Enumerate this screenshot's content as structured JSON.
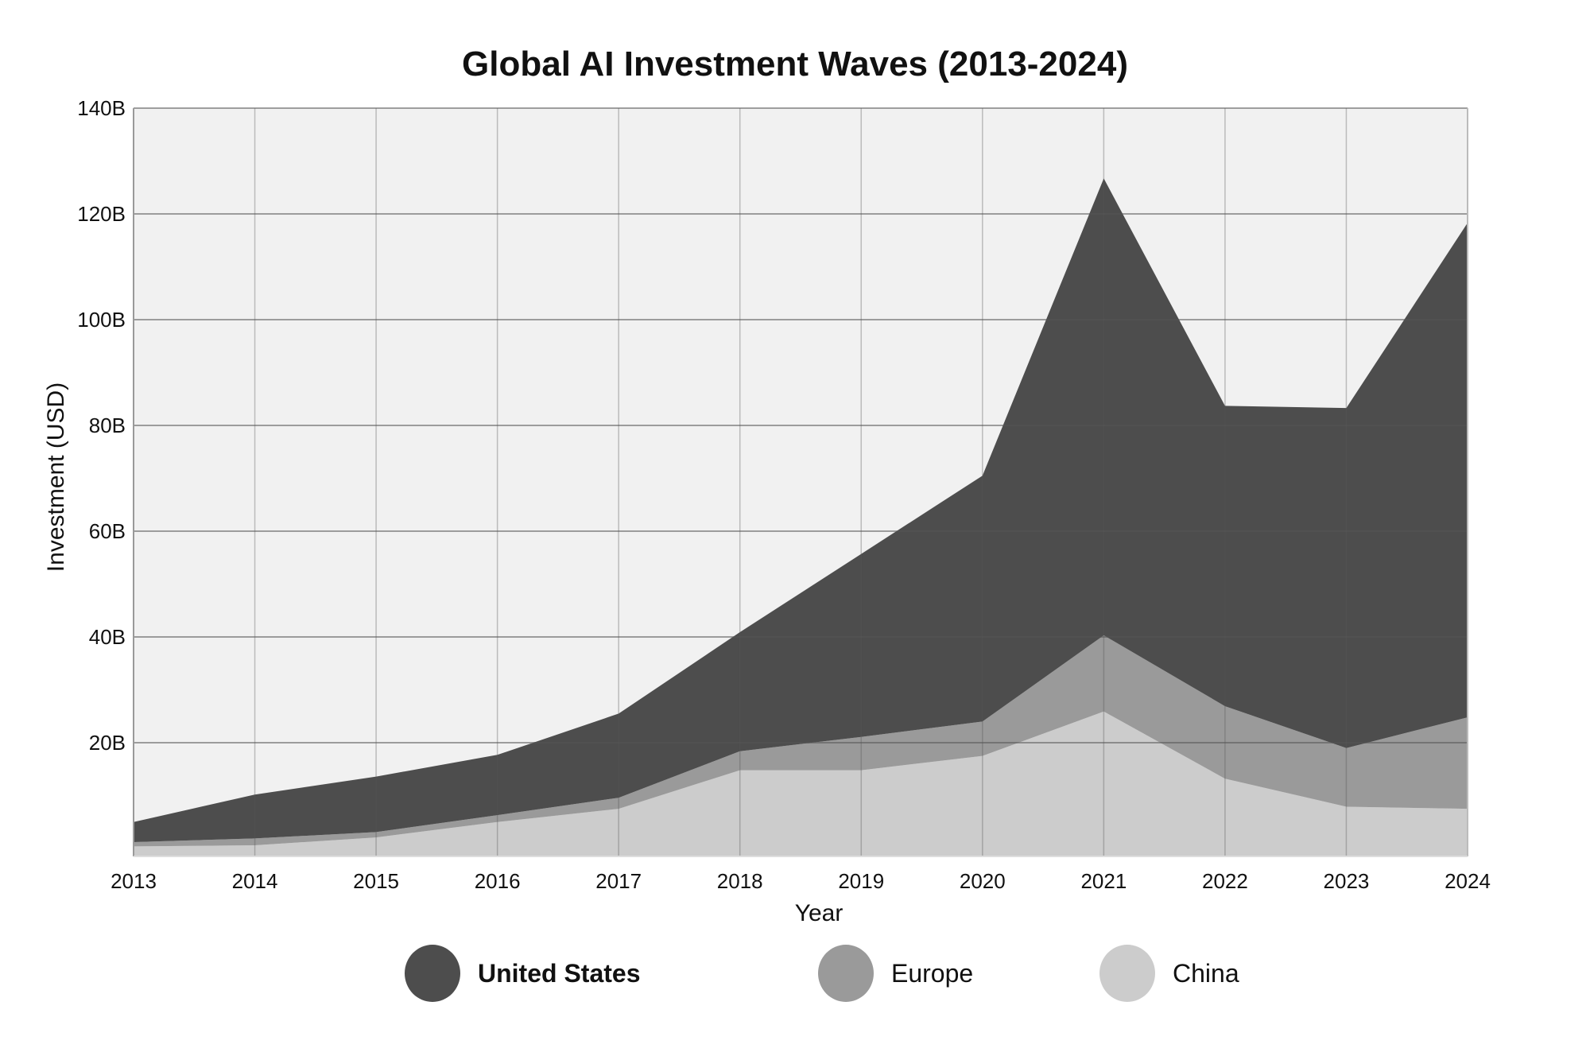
{
  "chart_data": {
    "type": "area",
    "stacked": true,
    "title": "Global AI Investment Waves (2013-2024)",
    "xlabel": "Year",
    "ylabel": "Investment (USD)",
    "categories": [
      "2013",
      "2014",
      "2015",
      "2016",
      "2017",
      "2018",
      "2019",
      "2020",
      "2021",
      "2022",
      "2023",
      "2024"
    ],
    "ylim": [
      -1.5,
      140
    ],
    "yticks": [
      20,
      40,
      60,
      80,
      100,
      120,
      140
    ],
    "ytick_labels": [
      "20B",
      "40B",
      "60B",
      "80B",
      "100B",
      "120B",
      "140B"
    ],
    "grid": true,
    "legend_position": "bottom",
    "series": [
      {
        "name": "China",
        "color": "#cccccc",
        "values": [
          0.4,
          0.6,
          2.1,
          5.0,
          7.5,
          14.8,
          14.8,
          17.5,
          25.9,
          13.2,
          7.9,
          7.5
        ]
      },
      {
        "name": "Europe",
        "color": "#9a9a9a",
        "values": [
          0.8,
          1.3,
          1.0,
          1.3,
          2.1,
          3.6,
          6.3,
          6.5,
          14.4,
          13.7,
          11.1,
          17.3
        ]
      },
      {
        "name": "United States",
        "color": "#4d4d4d",
        "values": [
          3.8,
          8.3,
          10.5,
          11.4,
          15.9,
          22.5,
          34.6,
          46.5,
          86.4,
          56.8,
          64.3,
          93.5
        ]
      }
    ],
    "legend": [
      {
        "label": "United States",
        "color": "#4d4d4d",
        "bold": true
      },
      {
        "label": "Europe",
        "color": "#9a9a9a",
        "bold": false
      },
      {
        "label": "China",
        "color": "#cccccc",
        "bold": false
      }
    ],
    "plot_background": "#f1f1f1",
    "grid_color": "#555555"
  }
}
